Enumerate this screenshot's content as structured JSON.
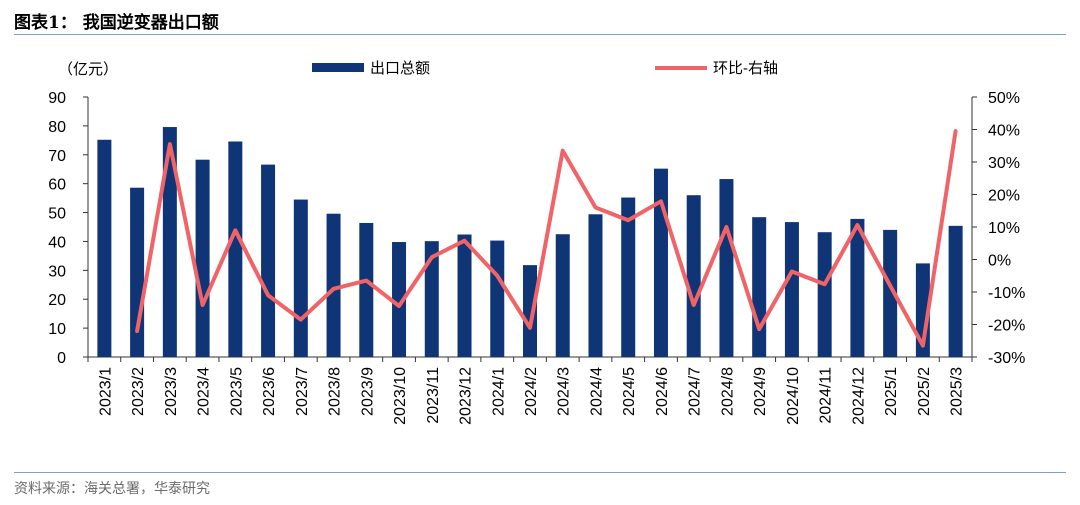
{
  "header": {
    "title": "图表1：  我国逆变器出口额"
  },
  "source": {
    "text": "资料来源：海关总署，华泰研究"
  },
  "colors": {
    "bar": "#0f3577",
    "line": "#f06468",
    "rule": "#7f9fc9"
  },
  "chart_data": {
    "type": "bar",
    "categories": [
      "2023/1",
      "2023/2",
      "2023/3",
      "2023/4",
      "2023/5",
      "2023/6",
      "2023/7",
      "2023/8",
      "2023/9",
      "2023/10",
      "2023/11",
      "2023/12",
      "2024/1",
      "2024/2",
      "2024/3",
      "2024/4",
      "2024/5",
      "2024/6",
      "2024/7",
      "2024/8",
      "2024/9",
      "2024/10",
      "2024/11",
      "2024/12",
      "2025/1",
      "2025/2",
      "2025/3"
    ],
    "left_unit": "（亿元）",
    "ylim": [
      0,
      90
    ],
    "yticks": [
      "0",
      "10",
      "20",
      "30",
      "40",
      "50",
      "60",
      "70",
      "80",
      "90"
    ],
    "y2lim": [
      -30,
      50
    ],
    "y2ticks": [
      "-30%",
      "-20%",
      "-10%",
      "0%",
      "10%",
      "20%",
      "30%",
      "40%",
      "50%"
    ],
    "legend": {
      "position": "top",
      "bar_label": "出口总额",
      "line_label": "环比-右轴"
    },
    "series": [
      {
        "name": "出口总额",
        "type": "bar",
        "axis": "left",
        "values": [
          75.2,
          58.6,
          79.6,
          68.3,
          74.6,
          66.6,
          54.5,
          49.6,
          46.4,
          39.8,
          40.1,
          42.4,
          40.3,
          31.8,
          42.5,
          49.4,
          55.2,
          65.2,
          56.0,
          61.6,
          48.4,
          46.7,
          43.2,
          47.8,
          44.0,
          32.4,
          45.4
        ]
      },
      {
        "name": "环比-右轴",
        "type": "line",
        "axis": "right",
        "unit": "%",
        "values": [
          null,
          -22,
          35.5,
          -14,
          9,
          -11,
          -18.5,
          -9,
          -6.5,
          -14.3,
          0.7,
          5.8,
          -5,
          -21,
          33.5,
          16,
          12.1,
          17.9,
          -14,
          10,
          -21.4,
          -3.7,
          -7.6,
          10.6,
          -8,
          -26.5,
          39.5
        ]
      }
    ]
  }
}
